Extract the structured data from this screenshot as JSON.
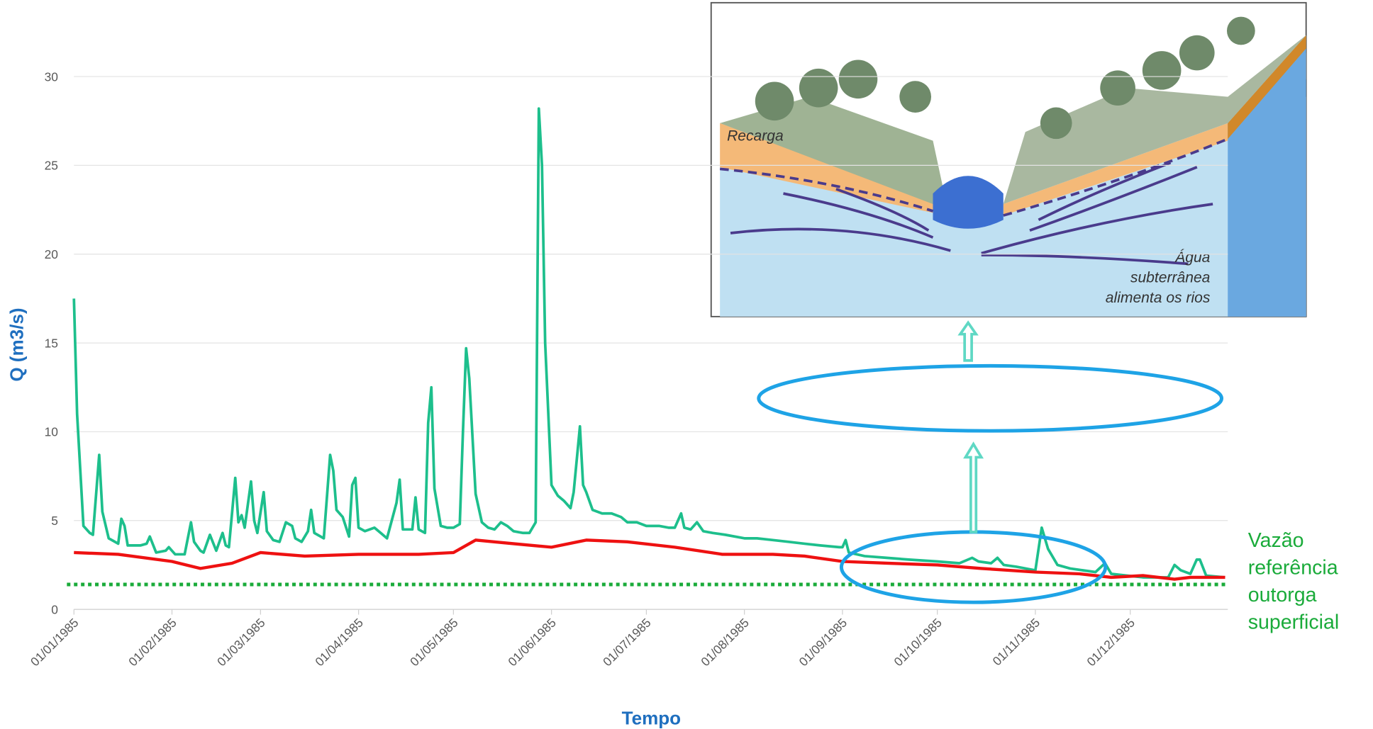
{
  "chart_data": {
    "type": "line",
    "x_label": "Tempo",
    "y_label": "Q (m3/s)",
    "xlim": [
      "1985-01-01",
      "1985-12-31"
    ],
    "ylim": [
      0,
      30
    ],
    "yticks": [
      0,
      5,
      10,
      15,
      20,
      25,
      30
    ],
    "grid": true,
    "xticks": [
      {
        "value": "1985-01-01",
        "label": "01/01/1985"
      },
      {
        "value": "1985-02-01",
        "label": "01/02/1985"
      },
      {
        "value": "1985-03-01",
        "label": "01/03/1985"
      },
      {
        "value": "1985-04-01",
        "label": "01/04/1985"
      },
      {
        "value": "1985-05-01",
        "label": "01/05/1985"
      },
      {
        "value": "1985-06-01",
        "label": "01/06/1985"
      },
      {
        "value": "1985-07-01",
        "label": "01/07/1985"
      },
      {
        "value": "1985-08-01",
        "label": "01/08/1985"
      },
      {
        "value": "1985-09-01",
        "label": "01/09/1985"
      },
      {
        "value": "1985-10-01",
        "label": "01/10/1985"
      },
      {
        "value": "1985-11-01",
        "label": "01/11/1985"
      },
      {
        "value": "1985-12-01",
        "label": "01/12/1985"
      }
    ],
    "series": [
      {
        "color": "#1dbf8c",
        "x": [
          "1985-01-01",
          "1985-01-02",
          "1985-01-04",
          "1985-01-06",
          "1985-01-07",
          "1985-01-09",
          "1985-01-10",
          "1985-01-12",
          "1985-01-14",
          "1985-01-15",
          "1985-01-16",
          "1985-01-17",
          "1985-01-18",
          "1985-01-22",
          "1985-01-24",
          "1985-01-25",
          "1985-01-27",
          "1985-01-30",
          "1985-01-31",
          "1985-02-02",
          "1985-02-05",
          "1985-02-07",
          "1985-02-08",
          "1985-02-10",
          "1985-02-11",
          "1985-02-13",
          "1985-02-15",
          "1985-02-17",
          "1985-02-18",
          "1985-02-19",
          "1985-02-21",
          "1985-02-22",
          "1985-02-23",
          "1985-02-24",
          "1985-02-26",
          "1985-02-27",
          "1985-02-28",
          "1985-03-02",
          "1985-03-03",
          "1985-03-05",
          "1985-03-07",
          "1985-03-09",
          "1985-03-11",
          "1985-03-12",
          "1985-03-14",
          "1985-03-16",
          "1985-03-17",
          "1985-03-18",
          "1985-03-21",
          "1985-03-23",
          "1985-03-24",
          "1985-03-25",
          "1985-03-27",
          "1985-03-29",
          "1985-03-30",
          "1985-03-31",
          "1985-04-01",
          "1985-04-03",
          "1985-04-06",
          "1985-04-08",
          "1985-04-10",
          "1985-04-13",
          "1985-04-14",
          "1985-04-15",
          "1985-04-18",
          "1985-04-19",
          "1985-04-20",
          "1985-04-22",
          "1985-04-23",
          "1985-04-24",
          "1985-04-25",
          "1985-04-27",
          "1985-04-29",
          "1985-05-01",
          "1985-05-03",
          "1985-05-04",
          "1985-05-05",
          "1985-05-06",
          "1985-05-08",
          "1985-05-10",
          "1985-05-12",
          "1985-05-14",
          "1985-05-16",
          "1985-05-18",
          "1985-05-20",
          "1985-05-23",
          "1985-05-25",
          "1985-05-27",
          "1985-05-28",
          "1985-05-29",
          "1985-05-30",
          "1985-06-01",
          "1985-06-03",
          "1985-06-05",
          "1985-06-07",
          "1985-06-08",
          "1985-06-10",
          "1985-06-11",
          "1985-06-12",
          "1985-06-14",
          "1985-06-17",
          "1985-06-20",
          "1985-06-23",
          "1985-06-25",
          "1985-06-28",
          "1985-07-01",
          "1985-07-05",
          "1985-07-08",
          "1985-07-10",
          "1985-07-12",
          "1985-07-13",
          "1985-07-15",
          "1985-07-17",
          "1985-07-19",
          "1985-07-22",
          "1985-07-26",
          "1985-08-01",
          "1985-08-05",
          "1985-08-10",
          "1985-08-15",
          "1985-08-20",
          "1985-08-25",
          "1985-08-31",
          "1985-09-01",
          "1985-09-02",
          "1985-09-03",
          "1985-09-08",
          "1985-09-15",
          "1985-09-22",
          "1985-10-01",
          "1985-10-08",
          "1985-10-12",
          "1985-10-14",
          "1985-10-18",
          "1985-10-20",
          "1985-10-22",
          "1985-10-26",
          "1985-11-01",
          "1985-11-03",
          "1985-11-05",
          "1985-11-08",
          "1985-11-12",
          "1985-11-16",
          "1985-11-20",
          "1985-11-23",
          "1985-11-25",
          "1985-11-30",
          "1985-12-05",
          "1985-12-10",
          "1985-12-13",
          "1985-12-15",
          "1985-12-17",
          "1985-12-20",
          "1985-12-22",
          "1985-12-23",
          "1985-12-25",
          "1985-12-31"
        ],
        "values": [
          17.5,
          11,
          4.7,
          4.3,
          4.2,
          8.7,
          5.5,
          4.0,
          3.8,
          3.7,
          5.1,
          4.7,
          3.6,
          3.6,
          3.7,
          4.1,
          3.2,
          3.3,
          3.5,
          3.1,
          3.1,
          4.9,
          3.8,
          3.3,
          3.2,
          4.2,
          3.3,
          4.3,
          3.6,
          3.5,
          7.4,
          4.9,
          5.3,
          4.6,
          7.2,
          5.0,
          4.3,
          6.6,
          4.4,
          3.9,
          3.8,
          4.9,
          4.7,
          4.0,
          3.8,
          4.4,
          5.6,
          4.3,
          4.0,
          8.7,
          7.8,
          5.6,
          5.2,
          4.1,
          7.0,
          7.4,
          4.6,
          4.4,
          4.6,
          4.3,
          4.0,
          6.0,
          7.3,
          4.5,
          4.5,
          6.3,
          4.5,
          4.3,
          10.5,
          12.5,
          6.8,
          4.7,
          4.6,
          4.6,
          4.8,
          10.0,
          14.7,
          13,
          6.5,
          4.9,
          4.6,
          4.5,
          4.9,
          4.7,
          4.4,
          4.3,
          4.3,
          4.9,
          28.2,
          25,
          15,
          7.0,
          6.4,
          6.1,
          5.7,
          6.6,
          10.3,
          7.0,
          6.6,
          5.6,
          5.4,
          5.4,
          5.2,
          4.9,
          4.9,
          4.7,
          4.7,
          4.6,
          4.6,
          5.4,
          4.6,
          4.5,
          4.9,
          4.4,
          4.3,
          4.2,
          4.0,
          4.0,
          3.9,
          3.8,
          3.7,
          3.6,
          3.5,
          3.5,
          3.9,
          3.2,
          3.0,
          2.9,
          2.8,
          2.7,
          2.6,
          2.9,
          2.7,
          2.6,
          2.9,
          2.5,
          2.4,
          2.2,
          4.6,
          3.4,
          2.5,
          2.3,
          2.2,
          2.1,
          2.6,
          2.0,
          1.9,
          1.8,
          1.8,
          1.8,
          2.5,
          2.2,
          2.0,
          2.8,
          2.8,
          1.9,
          1.8
        ]
      },
      {
        "color": "#ee1111",
        "x": [
          "1985-01-01",
          "1985-01-15",
          "1985-02-01",
          "1985-02-10",
          "1985-02-20",
          "1985-03-01",
          "1985-03-15",
          "1985-04-01",
          "1985-04-20",
          "1985-05-01",
          "1985-05-08",
          "1985-05-20",
          "1985-06-01",
          "1985-06-12",
          "1985-06-25",
          "1985-07-10",
          "1985-07-25",
          "1985-08-10",
          "1985-08-20",
          "1985-09-01",
          "1985-09-15",
          "1985-10-01",
          "1985-10-15",
          "1985-11-01",
          "1985-11-15",
          "1985-11-25",
          "1985-12-05",
          "1985-12-15",
          "1985-12-20",
          "1985-12-31"
        ],
        "values": [
          3.2,
          3.1,
          2.7,
          2.3,
          2.6,
          3.2,
          3.0,
          3.1,
          3.1,
          3.2,
          3.9,
          3.7,
          3.5,
          3.9,
          3.8,
          3.5,
          3.1,
          3.1,
          3.0,
          2.7,
          2.6,
          2.5,
          2.3,
          2.1,
          2.0,
          1.8,
          1.9,
          1.7,
          1.8,
          1.8
        ]
      }
    ],
    "reference_line": {
      "value": 1.4,
      "color": "#1aab3a"
    },
    "annotation_lines": [
      "Vazão",
      "referência",
      "outorga",
      "superficial"
    ],
    "inset": {
      "recharge": "Recarga",
      "caption": [
        "Água",
        "subterrânea",
        "alimenta os rios"
      ]
    }
  }
}
